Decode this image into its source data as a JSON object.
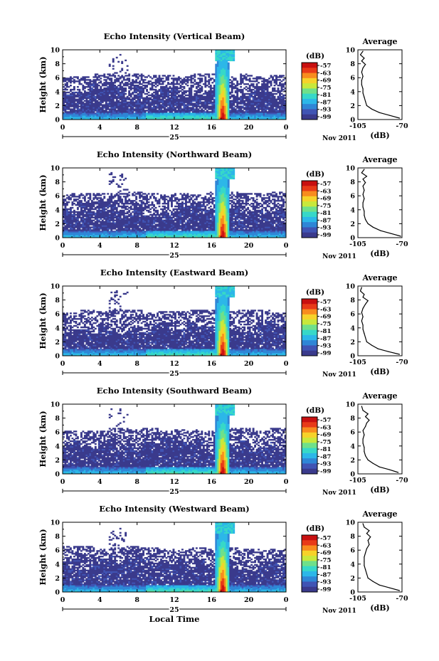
{
  "colors": {
    "scale": [
      "#3a3a8c",
      "#4054b4",
      "#2f86d6",
      "#2cb7e8",
      "#37d8c8",
      "#6fe08a",
      "#c8e83c",
      "#f6d22a",
      "#f88c1e",
      "#e83a18",
      "#c81010"
    ],
    "frame": "#000000"
  },
  "chart_data": [
    {
      "type": "heatmap",
      "title": "Echo Intensity (Vertical Beam)",
      "ylabel": "Height (km)",
      "xlabel": "",
      "x_ticks": [
        "0",
        "4",
        "8",
        "12",
        "16",
        "20",
        "0"
      ],
      "y_ticks": [
        "0",
        "2",
        "4",
        "6",
        "8",
        "10"
      ],
      "xlim": [
        0,
        24
      ],
      "ylim": [
        0,
        10
      ],
      "date_day": "25",
      "date_month_year": "Nov 2011",
      "colorbar_unit": "(dB)",
      "colorbar_ticks": [
        "-57",
        "-63",
        "-69",
        "-75",
        "-81",
        "-87",
        "-93",
        "-99"
      ],
      "profile": {
        "title": "Average",
        "xlabel": "(dB)",
        "x_ticks": [
          "-105",
          "-70"
        ],
        "y_ticks": [
          "0",
          "2",
          "4",
          "6",
          "8",
          "10"
        ],
        "xlim": [
          -105,
          -70
        ],
        "points": [
          [
            -72,
            0.2
          ],
          [
            -80,
            0.6
          ],
          [
            -88,
            1.0
          ],
          [
            -94,
            1.5
          ],
          [
            -98,
            2.0
          ],
          [
            -99,
            2.6
          ],
          [
            -100,
            3.2
          ],
          [
            -101,
            3.8
          ],
          [
            -101,
            4.4
          ],
          [
            -102,
            5.0
          ],
          [
            -102,
            5.6
          ],
          [
            -101,
            6.2
          ],
          [
            -102,
            6.8
          ],
          [
            -101,
            7.4
          ],
          [
            -99,
            7.9
          ],
          [
            -102,
            8.4
          ],
          [
            -100,
            8.8
          ],
          [
            -103,
            9.3
          ],
          [
            -101,
            9.8
          ]
        ]
      }
    },
    {
      "type": "heatmap",
      "title": "Echo Intensity (Northward Beam)",
      "ylabel": "Height (km)",
      "xlabel": "",
      "x_ticks": [
        "0",
        "4",
        "8",
        "12",
        "16",
        "20",
        "0"
      ],
      "y_ticks": [
        "0",
        "2",
        "4",
        "6",
        "8",
        "10"
      ],
      "xlim": [
        0,
        24
      ],
      "ylim": [
        0,
        10
      ],
      "date_day": "25",
      "date_month_year": "Nov 2011",
      "colorbar_unit": "(dB)",
      "colorbar_ticks": [
        "-57",
        "-63",
        "-69",
        "-75",
        "-81",
        "-87",
        "-93",
        "-99"
      ],
      "profile": {
        "title": "Average",
        "xlabel": "(dB)",
        "x_ticks": [
          "-105",
          "-70"
        ],
        "y_ticks": [
          "0",
          "2",
          "4",
          "6",
          "8",
          "10"
        ],
        "xlim": [
          -105,
          -70
        ],
        "points": [
          [
            -71,
            0.2
          ],
          [
            -79,
            0.6
          ],
          [
            -87,
            1.0
          ],
          [
            -93,
            1.5
          ],
          [
            -97,
            2.0
          ],
          [
            -99,
            2.6
          ],
          [
            -100,
            3.2
          ],
          [
            -100,
            3.8
          ],
          [
            -101,
            4.4
          ],
          [
            -101,
            5.0
          ],
          [
            -100,
            5.6
          ],
          [
            -101,
            6.2
          ],
          [
            -100,
            6.8
          ],
          [
            -101,
            7.4
          ],
          [
            -99,
            7.9
          ],
          [
            -101,
            8.4
          ],
          [
            -98,
            8.8
          ],
          [
            -102,
            9.3
          ],
          [
            -100,
            9.8
          ]
        ]
      }
    },
    {
      "type": "heatmap",
      "title": "Echo Intensity (Eastward Beam)",
      "ylabel": "Height (km)",
      "xlabel": "",
      "x_ticks": [
        "0",
        "4",
        "8",
        "12",
        "16",
        "20",
        "0"
      ],
      "y_ticks": [
        "0",
        "2",
        "4",
        "6",
        "8",
        "10"
      ],
      "xlim": [
        0,
        24
      ],
      "ylim": [
        0,
        10
      ],
      "date_day": "25",
      "date_month_year": "Nov 2011",
      "colorbar_unit": "(dB)",
      "colorbar_ticks": [
        "-57",
        "-63",
        "-69",
        "-75",
        "-81",
        "-87",
        "-93",
        "-99"
      ],
      "profile": {
        "title": "Average",
        "xlabel": "(dB)",
        "x_ticks": [
          "-105",
          "-70"
        ],
        "y_ticks": [
          "0",
          "2",
          "4",
          "6",
          "8",
          "10"
        ],
        "xlim": [
          -105,
          -70
        ],
        "points": [
          [
            -72,
            0.2
          ],
          [
            -81,
            0.6
          ],
          [
            -89,
            1.0
          ],
          [
            -94,
            1.5
          ],
          [
            -98,
            2.0
          ],
          [
            -99,
            2.6
          ],
          [
            -100,
            3.2
          ],
          [
            -101,
            3.8
          ],
          [
            -101,
            4.4
          ],
          [
            -102,
            5.0
          ],
          [
            -101,
            5.6
          ],
          [
            -102,
            6.2
          ],
          [
            -101,
            6.8
          ],
          [
            -99,
            7.4
          ],
          [
            -97,
            7.9
          ],
          [
            -101,
            8.4
          ],
          [
            -100,
            8.8
          ],
          [
            -103,
            9.3
          ],
          [
            -102,
            9.8
          ]
        ]
      }
    },
    {
      "type": "heatmap",
      "title": "Echo Intensity (Southward Beam)",
      "ylabel": "Height (km)",
      "xlabel": "",
      "x_ticks": [
        "0",
        "4",
        "8",
        "12",
        "16",
        "20",
        "0"
      ],
      "y_ticks": [
        "0",
        "2",
        "4",
        "6",
        "8",
        "10"
      ],
      "xlim": [
        0,
        24
      ],
      "ylim": [
        0,
        10
      ],
      "date_day": "25",
      "date_month_year": "Nov 2011",
      "colorbar_unit": "(dB)",
      "colorbar_ticks": [
        "-57",
        "-63",
        "-69",
        "-75",
        "-81",
        "-87",
        "-93",
        "-99"
      ],
      "profile": {
        "title": "Average",
        "xlabel": "(dB)",
        "x_ticks": [
          "-105",
          "-70"
        ],
        "y_ticks": [
          "0",
          "2",
          "4",
          "6",
          "8",
          "10"
        ],
        "xlim": [
          -105,
          -70
        ],
        "points": [
          [
            -73,
            0.2
          ],
          [
            -80,
            0.6
          ],
          [
            -88,
            1.0
          ],
          [
            -93,
            1.5
          ],
          [
            -97,
            2.0
          ],
          [
            -99,
            2.6
          ],
          [
            -100,
            3.2
          ],
          [
            -100,
            3.8
          ],
          [
            -101,
            4.4
          ],
          [
            -101,
            5.0
          ],
          [
            -100,
            5.6
          ],
          [
            -101,
            6.2
          ],
          [
            -99,
            6.8
          ],
          [
            -98,
            7.3
          ],
          [
            -96,
            7.7
          ],
          [
            -99,
            8.2
          ],
          [
            -97,
            8.6
          ],
          [
            -101,
            9.1
          ],
          [
            -102,
            9.7
          ]
        ]
      }
    },
    {
      "type": "heatmap",
      "title": "Echo Intensity (Westward Beam)",
      "ylabel": "Height (km)",
      "xlabel": "Local Time",
      "x_ticks": [
        "0",
        "4",
        "8",
        "12",
        "16",
        "20",
        "0"
      ],
      "y_ticks": [
        "0",
        "2",
        "4",
        "6",
        "8",
        "10"
      ],
      "xlim": [
        0,
        24
      ],
      "ylim": [
        0,
        10
      ],
      "date_day": "25",
      "date_month_year": "Nov 2011",
      "colorbar_unit": "(dB)",
      "colorbar_ticks": [
        "-57",
        "-63",
        "-69",
        "-75",
        "-81",
        "-87",
        "-93",
        "-99"
      ],
      "profile": {
        "title": "Average",
        "xlabel": "(dB)",
        "x_ticks": [
          "-105",
          "-70"
        ],
        "y_ticks": [
          "0",
          "2",
          "4",
          "6",
          "8",
          "10"
        ],
        "xlim": [
          -105,
          -70
        ],
        "points": [
          [
            -72,
            0.2
          ],
          [
            -80,
            0.6
          ],
          [
            -88,
            1.0
          ],
          [
            -93,
            1.5
          ],
          [
            -97,
            2.0
          ],
          [
            -98,
            2.6
          ],
          [
            -99,
            3.2
          ],
          [
            -100,
            3.8
          ],
          [
            -100,
            4.4
          ],
          [
            -100,
            5.0
          ],
          [
            -99,
            5.6
          ],
          [
            -98,
            6.2
          ],
          [
            -96,
            6.8
          ],
          [
            -97,
            7.4
          ],
          [
            -95,
            7.9
          ],
          [
            -98,
            8.4
          ],
          [
            -96,
            8.8
          ],
          [
            -100,
            9.3
          ],
          [
            -101,
            9.8
          ]
        ]
      }
    }
  ]
}
